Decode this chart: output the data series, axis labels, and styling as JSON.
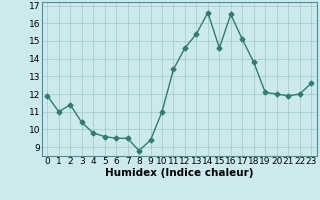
{
  "x": [
    0,
    1,
    2,
    3,
    4,
    5,
    6,
    7,
    8,
    9,
    10,
    11,
    12,
    13,
    14,
    15,
    16,
    17,
    18,
    19,
    20,
    21,
    22,
    23
  ],
  "y": [
    11.9,
    11.0,
    11.4,
    10.4,
    9.8,
    9.6,
    9.5,
    9.5,
    8.8,
    9.4,
    11.0,
    13.4,
    14.6,
    15.4,
    16.6,
    14.6,
    16.5,
    15.1,
    13.8,
    12.1,
    12.0,
    11.9,
    12.0,
    12.6
  ],
  "line_color": "#2e7d6e",
  "marker": "D",
  "marker_size": 2.5,
  "bg_color": "#cce9ed",
  "grid_color": "#a0c8cc",
  "xlabel": "Humidex (Indice chaleur)",
  "xlim": [
    -0.5,
    23.5
  ],
  "ylim": [
    8.5,
    17.2
  ],
  "yticks": [
    9,
    10,
    11,
    12,
    13,
    14,
    15,
    16,
    17
  ],
  "xticks": [
    0,
    1,
    2,
    3,
    4,
    5,
    6,
    7,
    8,
    9,
    10,
    11,
    12,
    13,
    14,
    15,
    16,
    17,
    18,
    19,
    20,
    21,
    22,
    23
  ],
  "xlabel_fontsize": 7.5,
  "tick_fontsize": 6.5,
  "linewidth": 1.0
}
